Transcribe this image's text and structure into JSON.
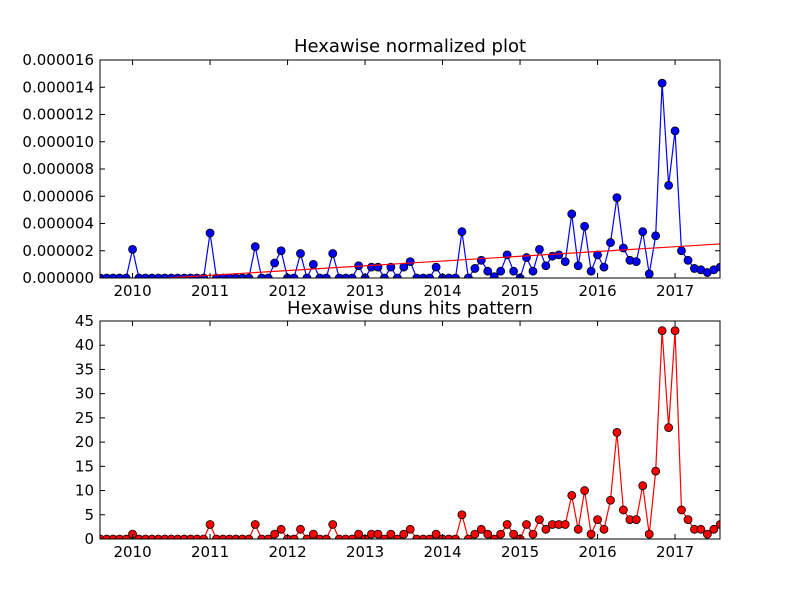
{
  "chart_data": [
    {
      "type": "line",
      "title": "Hexawise normalized plot",
      "xlabel": "",
      "ylabel": "",
      "xlim": [
        2009.58,
        2017.58
      ],
      "ylim": [
        0,
        1.6e-05
      ],
      "grid": false,
      "x_ticks": [
        2010,
        2011,
        2012,
        2013,
        2014,
        2015,
        2016,
        2017
      ],
      "x_tick_labels": [
        "2010",
        "2011",
        "2012",
        "2013",
        "2014",
        "2015",
        "2016",
        "2017"
      ],
      "y_ticks": [
        0,
        2e-06,
        4e-06,
        6e-06,
        8e-06,
        1e-05,
        1.2e-05,
        1.4e-05,
        1.6e-05
      ],
      "y_tick_labels": [
        "0.000000",
        "0.000002",
        "0.000004",
        "0.000006",
        "0.000008",
        "0.000010",
        "0.000012",
        "0.000014",
        "0.000016"
      ],
      "series": [
        {
          "color": "#0000ff",
          "marker": "circle",
          "x": [
            2009.583,
            2009.667,
            2009.75,
            2009.833,
            2009.917,
            2010.0,
            2010.083,
            2010.167,
            2010.25,
            2010.333,
            2010.417,
            2010.5,
            2010.583,
            2010.667,
            2010.75,
            2010.833,
            2010.917,
            2011.0,
            2011.083,
            2011.167,
            2011.25,
            2011.333,
            2011.417,
            2011.5,
            2011.583,
            2011.667,
            2011.75,
            2011.833,
            2011.917,
            2012.0,
            2012.083,
            2012.167,
            2012.25,
            2012.333,
            2012.417,
            2012.5,
            2012.583,
            2012.667,
            2012.75,
            2012.833,
            2012.917,
            2013.0,
            2013.083,
            2013.167,
            2013.25,
            2013.333,
            2013.417,
            2013.5,
            2013.583,
            2013.667,
            2013.75,
            2013.833,
            2013.917,
            2014.0,
            2014.083,
            2014.167,
            2014.25,
            2014.333,
            2014.417,
            2014.5,
            2014.583,
            2014.667,
            2014.75,
            2014.833,
            2014.917,
            2015.0,
            2015.083,
            2015.167,
            2015.25,
            2015.333,
            2015.417,
            2015.5,
            2015.583,
            2015.667,
            2015.75,
            2015.833,
            2015.917,
            2016.0,
            2016.083,
            2016.167,
            2016.25,
            2016.333,
            2016.417,
            2016.5,
            2016.583,
            2016.667,
            2016.75,
            2016.833,
            2016.917,
            2017.0,
            2017.083,
            2017.167,
            2017.25,
            2017.333,
            2017.417,
            2017.5,
            2017.583
          ],
          "y": [
            0,
            0,
            0,
            0,
            0,
            2.1e-06,
            0,
            0,
            0,
            0,
            0,
            0,
            0,
            0,
            0,
            0,
            0,
            3.3e-06,
            0,
            0,
            0,
            0,
            0,
            0,
            2.3e-06,
            0,
            0,
            1.1e-06,
            2e-06,
            0,
            0,
            1.8e-06,
            0,
            1e-06,
            0,
            0,
            1.8e-06,
            0,
            0,
            0,
            9e-07,
            0,
            8e-07,
            8e-07,
            0,
            8e-07,
            0,
            8e-07,
            1.2e-06,
            0,
            0,
            0,
            8e-07,
            0,
            0,
            0,
            3.4e-06,
            0,
            7e-07,
            1.3e-06,
            5e-07,
            1e-07,
            5e-07,
            1.7e-06,
            5e-07,
            0,
            1.5e-06,
            5e-07,
            2.1e-06,
            9e-07,
            1.6e-06,
            1.7e-06,
            1.2e-06,
            4.7e-06,
            9e-07,
            3.8e-06,
            5e-07,
            1.7e-06,
            8e-07,
            2.6e-06,
            5.9e-06,
            2.2e-06,
            1.3e-06,
            1.2e-06,
            3.4e-06,
            3e-07,
            3.1e-06,
            1.43e-05,
            6.8e-06,
            1.08e-05,
            2e-06,
            1.3e-06,
            7e-07,
            6e-07,
            4e-07,
            6e-07,
            8e-07
          ]
        },
        {
          "type": "trendline",
          "color": "#ff0000",
          "x": [
            2009.58,
            2017.58
          ],
          "y": [
            -3e-07,
            2.5e-06
          ]
        }
      ]
    },
    {
      "type": "line",
      "title": "Hexawise duns hits pattern",
      "xlabel": "",
      "ylabel": "",
      "xlim": [
        2009.58,
        2017.58
      ],
      "ylim": [
        0,
        45
      ],
      "grid": false,
      "x_ticks": [
        2010,
        2011,
        2012,
        2013,
        2014,
        2015,
        2016,
        2017
      ],
      "x_tick_labels": [
        "2010",
        "2011",
        "2012",
        "2013",
        "2014",
        "2015",
        "2016",
        "2017"
      ],
      "y_ticks": [
        0,
        5,
        10,
        15,
        20,
        25,
        30,
        35,
        40,
        45
      ],
      "y_tick_labels": [
        "0",
        "5",
        "10",
        "15",
        "20",
        "25",
        "30",
        "35",
        "40",
        "45"
      ],
      "series": [
        {
          "color": "#ff0000",
          "marker": "circle",
          "x": [
            2009.583,
            2009.667,
            2009.75,
            2009.833,
            2009.917,
            2010.0,
            2010.083,
            2010.167,
            2010.25,
            2010.333,
            2010.417,
            2010.5,
            2010.583,
            2010.667,
            2010.75,
            2010.833,
            2010.917,
            2011.0,
            2011.083,
            2011.167,
            2011.25,
            2011.333,
            2011.417,
            2011.5,
            2011.583,
            2011.667,
            2011.75,
            2011.833,
            2011.917,
            2012.0,
            2012.083,
            2012.167,
            2012.25,
            2012.333,
            2012.417,
            2012.5,
            2012.583,
            2012.667,
            2012.75,
            2012.833,
            2012.917,
            2013.0,
            2013.083,
            2013.167,
            2013.25,
            2013.333,
            2013.417,
            2013.5,
            2013.583,
            2013.667,
            2013.75,
            2013.833,
            2013.917,
            2014.0,
            2014.083,
            2014.167,
            2014.25,
            2014.333,
            2014.417,
            2014.5,
            2014.583,
            2014.667,
            2014.75,
            2014.833,
            2014.917,
            2015.0,
            2015.083,
            2015.167,
            2015.25,
            2015.333,
            2015.417,
            2015.5,
            2015.583,
            2015.667,
            2015.75,
            2015.833,
            2015.917,
            2016.0,
            2016.083,
            2016.167,
            2016.25,
            2016.333,
            2016.417,
            2016.5,
            2016.583,
            2016.667,
            2016.75,
            2016.833,
            2016.917,
            2017.0,
            2017.083,
            2017.167,
            2017.25,
            2017.333,
            2017.417,
            2017.5,
            2017.583
          ],
          "y": [
            0,
            0,
            0,
            0,
            0,
            1,
            0,
            0,
            0,
            0,
            0,
            0,
            0,
            0,
            0,
            0,
            0,
            3,
            0,
            0,
            0,
            0,
            0,
            0,
            3,
            0,
            0,
            1,
            2,
            0,
            0,
            2,
            0,
            1,
            0,
            0,
            3,
            0,
            0,
            0,
            1,
            0,
            1,
            1,
            0,
            1,
            0,
            1,
            2,
            0,
            0,
            0,
            1,
            0,
            0,
            0,
            5,
            0,
            1,
            2,
            1,
            0,
            1,
            3,
            1,
            0,
            3,
            1,
            4,
            2,
            3,
            3,
            3,
            9,
            2,
            10,
            1,
            4,
            2,
            8,
            22,
            6,
            4,
            4,
            11,
            1,
            14,
            43,
            23,
            43,
            6,
            4,
            2,
            2,
            1,
            2,
            3
          ]
        }
      ]
    }
  ]
}
